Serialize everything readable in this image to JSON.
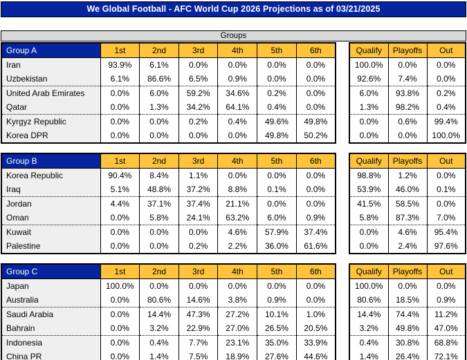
{
  "title": "We Global Football - AFC World Cup 2026 Projections as of 03/21/2025",
  "section_header": "Groups",
  "place_headers": [
    "1st",
    "2nd",
    "3rd",
    "4th",
    "5th",
    "6th"
  ],
  "outcome_headers": [
    "Qualify",
    "Playoffs",
    "Out"
  ],
  "colors": {
    "title_bar_bg": "#05249E",
    "group_label_bg": "#05249E",
    "column_header_bg": "#FFC43C",
    "section_header_bg": "#D9D9D9",
    "team_cell_bg": "#EFEFEF",
    "grid_border": "#000000"
  },
  "groups": [
    {
      "label": "Group A",
      "teams": [
        {
          "name": "Iran",
          "places": [
            "93.9%",
            "6.1%",
            "0.0%",
            "0.0%",
            "0.0%",
            "0.0%"
          ],
          "outcomes": [
            "100.0%",
            "0.0%",
            "0.0%"
          ]
        },
        {
          "name": "Uzbekistan",
          "places": [
            "6.1%",
            "86.6%",
            "6.5%",
            "0.9%",
            "0.0%",
            "0.0%"
          ],
          "outcomes": [
            "92.6%",
            "7.4%",
            "0.0%"
          ]
        },
        {
          "name": "United Arab Emirates",
          "places": [
            "0.0%",
            "6.0%",
            "59.2%",
            "34.6%",
            "0.2%",
            "0.0%"
          ],
          "outcomes": [
            "6.0%",
            "93.8%",
            "0.2%"
          ]
        },
        {
          "name": "Qatar",
          "places": [
            "0.0%",
            "1.3%",
            "34.2%",
            "64.1%",
            "0.4%",
            "0.0%"
          ],
          "outcomes": [
            "1.3%",
            "98.2%",
            "0.4%"
          ]
        },
        {
          "name": "Kyrgyz Republic",
          "places": [
            "0.0%",
            "0.0%",
            "0.2%",
            "0.4%",
            "49.6%",
            "49.8%"
          ],
          "outcomes": [
            "0.0%",
            "0.6%",
            "99.4%"
          ]
        },
        {
          "name": "Korea DPR",
          "places": [
            "0.0%",
            "0.0%",
            "0.0%",
            "0.0%",
            "49.8%",
            "50.2%"
          ],
          "outcomes": [
            "0.0%",
            "0.0%",
            "100.0%"
          ]
        }
      ]
    },
    {
      "label": "Group B",
      "teams": [
        {
          "name": "Korea Republic",
          "places": [
            "90.4%",
            "8.4%",
            "1.1%",
            "0.0%",
            "0.0%",
            "0.0%"
          ],
          "outcomes": [
            "98.8%",
            "1.2%",
            "0.0%"
          ]
        },
        {
          "name": "Iraq",
          "places": [
            "5.1%",
            "48.8%",
            "37.2%",
            "8.8%",
            "0.1%",
            "0.0%"
          ],
          "outcomes": [
            "53.9%",
            "46.0%",
            "0.1%"
          ]
        },
        {
          "name": "Jordan",
          "places": [
            "4.4%",
            "37.1%",
            "37.4%",
            "21.1%",
            "0.0%",
            "0.0%"
          ],
          "outcomes": [
            "41.5%",
            "58.5%",
            "0.0%"
          ]
        },
        {
          "name": "Oman",
          "places": [
            "0.0%",
            "5.8%",
            "24.1%",
            "63.2%",
            "6.0%",
            "0.9%"
          ],
          "outcomes": [
            "5.8%",
            "87.3%",
            "7.0%"
          ]
        },
        {
          "name": "Kuwait",
          "places": [
            "0.0%",
            "0.0%",
            "0.0%",
            "4.6%",
            "57.9%",
            "37.4%"
          ],
          "outcomes": [
            "0.0%",
            "4.6%",
            "95.4%"
          ]
        },
        {
          "name": "Palestine",
          "places": [
            "0.0%",
            "0.0%",
            "0.2%",
            "2.2%",
            "36.0%",
            "61.6%"
          ],
          "outcomes": [
            "0.0%",
            "2.4%",
            "97.6%"
          ]
        }
      ]
    },
    {
      "label": "Group C",
      "teams": [
        {
          "name": "Japan",
          "places": [
            "100.0%",
            "0.0%",
            "0.0%",
            "0.0%",
            "0.0%",
            "0.0%"
          ],
          "outcomes": [
            "100.0%",
            "0.0%",
            "0.0%"
          ]
        },
        {
          "name": "Australia",
          "places": [
            "0.0%",
            "80.6%",
            "14.6%",
            "3.8%",
            "0.9%",
            "0.0%"
          ],
          "outcomes": [
            "80.6%",
            "18.5%",
            "0.9%"
          ]
        },
        {
          "name": "Saudi Arabia",
          "places": [
            "0.0%",
            "14.4%",
            "47.3%",
            "27.2%",
            "10.1%",
            "1.0%"
          ],
          "outcomes": [
            "14.4%",
            "74.4%",
            "11.2%"
          ]
        },
        {
          "name": "Bahrain",
          "places": [
            "0.0%",
            "3.2%",
            "22.9%",
            "27.0%",
            "26.5%",
            "20.5%"
          ],
          "outcomes": [
            "3.2%",
            "49.8%",
            "47.0%"
          ]
        },
        {
          "name": "Indonesia",
          "places": [
            "0.0%",
            "0.4%",
            "7.7%",
            "23.1%",
            "35.0%",
            "33.9%"
          ],
          "outcomes": [
            "0.4%",
            "30.8%",
            "68.8%"
          ]
        },
        {
          "name": "China PR",
          "places": [
            "0.0%",
            "1.4%",
            "7.5%",
            "18.9%",
            "27.6%",
            "44.6%"
          ],
          "outcomes": [
            "1.4%",
            "26.4%",
            "72.1%"
          ]
        }
      ]
    }
  ]
}
